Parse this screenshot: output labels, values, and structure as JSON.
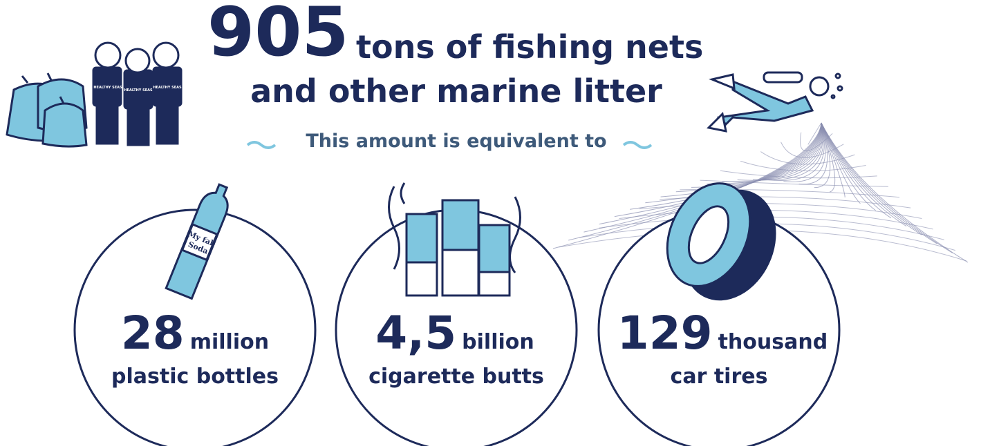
{
  "headline": {
    "number": 905,
    "line1": "tons of fishing nets",
    "line2": "and other marine litter"
  },
  "subtitle": "This amount is equivalent to",
  "shirt_text": "HEALTHY SEAS",
  "bottle_label": [
    "My fab",
    "Soda"
  ],
  "items": [
    {
      "number": 28,
      "unit": "million",
      "label": "plastic bottles"
    },
    {
      "number": "4,5",
      "unit": "billion",
      "label": "cigarette butts"
    },
    {
      "number": 129,
      "unit": "thousand",
      "label": "car tires"
    }
  ]
}
